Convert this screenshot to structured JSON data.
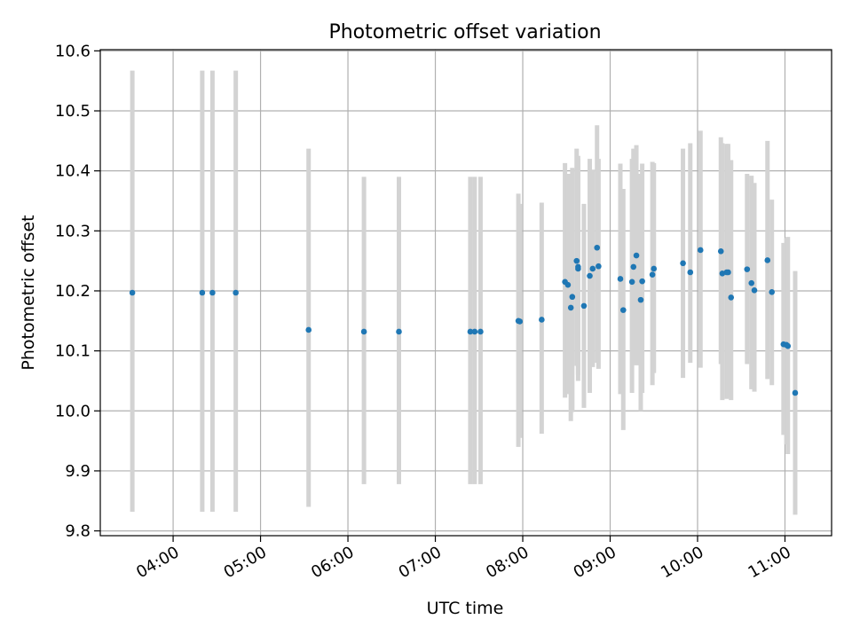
{
  "colors": {
    "point": "#1f77b4",
    "errorbar": "#d3d3d3",
    "grid": "#b0b0b0",
    "axes": "#000000"
  },
  "chart_data": {
    "type": "scatter",
    "title": "Photometric offset variation",
    "xlabel": "UTC time",
    "ylabel": "Photometric offset",
    "xlim": [
      "03:10",
      "11:32"
    ],
    "ylim": [
      9.792,
      10.602
    ],
    "grid": true,
    "xticks": [
      "04:00",
      "05:00",
      "06:00",
      "07:00",
      "08:00",
      "09:00",
      "10:00",
      "11:00"
    ],
    "yticks": [
      "9.8",
      "9.9",
      "10.0",
      "10.1",
      "10.2",
      "10.3",
      "10.4",
      "10.5",
      "10.6"
    ],
    "series": [
      {
        "x": [
          "03:32",
          "04:20",
          "04:27",
          "04:43",
          "05:33",
          "06:11",
          "06:35",
          "07:24",
          "07:27",
          "07:31",
          "07:57",
          "07:58",
          "08:13",
          "08:29",
          "08:31",
          "08:33",
          "08:34",
          "08:37",
          "08:38",
          "08:38",
          "08:42",
          "08:46",
          "08:48",
          "08:51",
          "08:52",
          "09:07",
          "09:09",
          "09:15",
          "09:16",
          "09:18",
          "09:21",
          "09:22",
          "09:29",
          "09:30",
          "09:50",
          "09:55",
          "10:02",
          "10:16",
          "10:17",
          "10:20",
          "10:21",
          "10:23",
          "10:34",
          "10:37",
          "10:39",
          "10:48",
          "10:51",
          "10:59",
          "11:01",
          "11:02",
          "11:07"
        ],
        "y": [
          10.197,
          10.197,
          10.197,
          10.197,
          10.135,
          10.132,
          10.132,
          10.132,
          10.132,
          10.132,
          10.15,
          10.149,
          10.152,
          10.215,
          10.21,
          10.172,
          10.19,
          10.25,
          10.24,
          10.237,
          10.175,
          10.225,
          10.237,
          10.272,
          10.241,
          10.22,
          10.168,
          10.215,
          10.24,
          10.259,
          10.185,
          10.216,
          10.227,
          10.237,
          10.246,
          10.231,
          10.268,
          10.266,
          10.229,
          10.231,
          10.231,
          10.189,
          10.236,
          10.213,
          10.201,
          10.251,
          10.198,
          10.111,
          10.11,
          10.108,
          10.03
        ],
        "err_low": [
          9.832,
          9.832,
          9.832,
          9.832,
          9.84,
          9.878,
          9.878,
          9.878,
          9.878,
          9.878,
          9.94,
          9.955,
          9.962,
          10.022,
          10.028,
          9.983,
          9.998,
          10.075,
          10.05,
          10.06,
          10.005,
          10.03,
          10.073,
          10.08,
          10.07,
          10.028,
          9.968,
          10.03,
          10.08,
          10.076,
          10.0,
          10.03,
          10.043,
          10.063,
          10.055,
          10.08,
          10.072,
          10.078,
          10.018,
          10.02,
          10.022,
          10.018,
          10.078,
          10.036,
          10.032,
          10.053,
          10.043,
          9.96,
          9.944,
          9.928,
          9.827
        ],
        "err_high": [
          10.567,
          10.567,
          10.567,
          10.567,
          10.437,
          10.39,
          10.39,
          10.39,
          10.39,
          10.39,
          10.362,
          10.345,
          10.347,
          10.413,
          10.395,
          10.395,
          10.405,
          10.437,
          10.425,
          10.42,
          10.345,
          10.42,
          10.402,
          10.476,
          10.42,
          10.412,
          10.37,
          10.42,
          10.437,
          10.443,
          10.395,
          10.412,
          10.415,
          10.413,
          10.437,
          10.446,
          10.467,
          10.456,
          10.446,
          10.445,
          10.445,
          10.418,
          10.395,
          10.392,
          10.38,
          10.45,
          10.352,
          10.28,
          10.288,
          10.29,
          10.233
        ]
      }
    ]
  }
}
